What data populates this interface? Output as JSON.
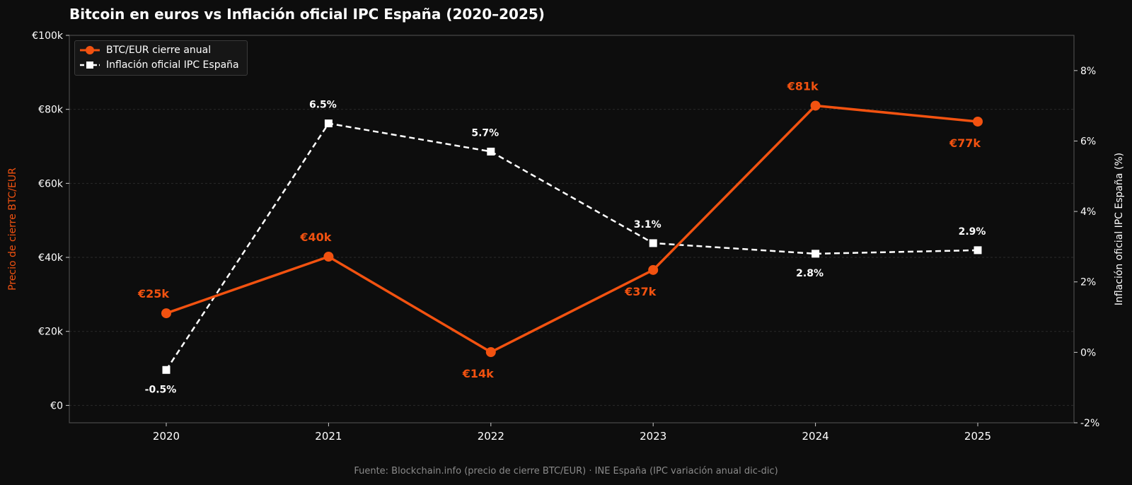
{
  "colors": {
    "background": "#0d0d0d",
    "btc": "#f25210",
    "inflation": "#ffffff",
    "axis": "#555555",
    "grid": "#2a2a2a",
    "muted": "#8a8a8a"
  },
  "chart_data": {
    "type": "line",
    "title": "Bitcoin en euros vs Inflación oficial IPC España (2020–2025)",
    "x": [
      "2020",
      "2021",
      "2022",
      "2023",
      "2024",
      "2025"
    ],
    "y_left": {
      "label": "Precio de cierre BTC/EUR",
      "lim": [
        -4.7,
        100
      ],
      "ticks": [
        0,
        20,
        40,
        60,
        80,
        100
      ],
      "tick_labels": [
        "€0",
        "€20k",
        "€40k",
        "€60k",
        "€80k",
        "€100k"
      ]
    },
    "y_right": {
      "label": "Inflación oficial IPC España (%)",
      "lim": [
        -2,
        9
      ],
      "ticks": [
        -2,
        0,
        2,
        4,
        6,
        8
      ],
      "tick_labels": [
        "-2%",
        "0%",
        "2%",
        "4%",
        "6%",
        "8%"
      ]
    },
    "series": [
      {
        "name": "BTC/EUR cierre anual",
        "axis": "left",
        "style": "solid-circle",
        "values": [
          24.9,
          40.2,
          14.4,
          36.6,
          81.0,
          76.7
        ],
        "labels": [
          "€25k",
          "€40k",
          "€14k",
          "€37k",
          "€81k",
          "€77k"
        ],
        "label_pos": [
          "above",
          "above",
          "below",
          "below",
          "above",
          "below"
        ]
      },
      {
        "name": "Inflación oficial IPC España",
        "axis": "right",
        "style": "dashed-square",
        "values": [
          -0.5,
          6.5,
          5.7,
          3.1,
          2.8,
          2.9
        ],
        "labels": [
          "-0.5%",
          "6.5%",
          "5.7%",
          "3.1%",
          "2.8%",
          "2.9%"
        ],
        "label_pos": [
          "below",
          "above",
          "above",
          "above",
          "below",
          "above"
        ]
      }
    ],
    "grid": true,
    "legend_position": "top-left"
  },
  "source": "Fuente: Blockchain.info (precio de cierre BTC/EUR) · INE España (IPC variación anual dic-dic)"
}
